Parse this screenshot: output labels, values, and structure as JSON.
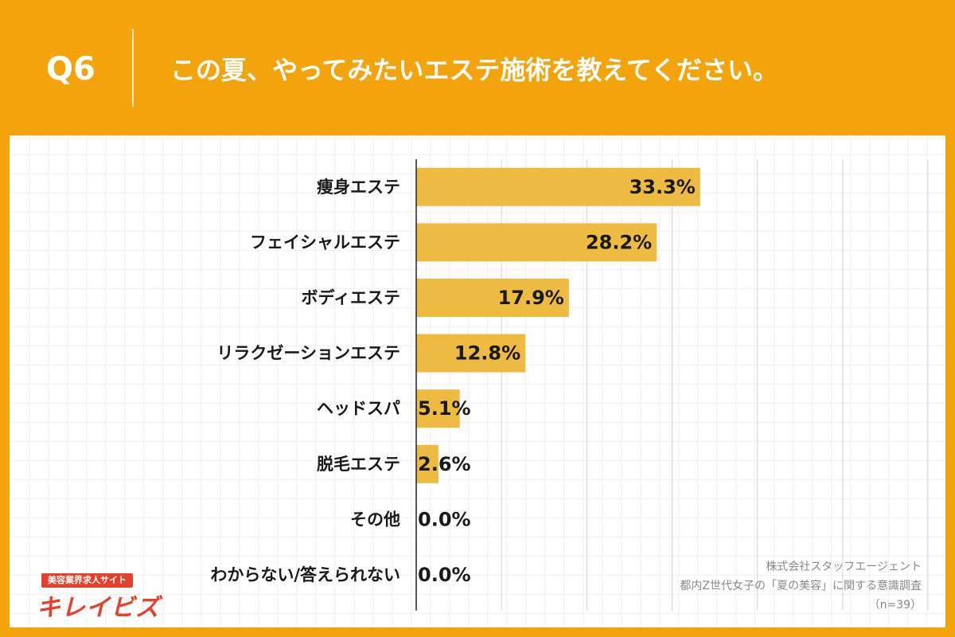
{
  "header": {
    "question_number": "Q6",
    "question_text": "この夏、やってみたいエステ施術を教えてください。"
  },
  "chart_data": {
    "type": "bar",
    "orientation": "horizontal",
    "categories": [
      "痩身エステ",
      "フェイシャルエステ",
      "ボディエステ",
      "リラクゼーションエステ",
      "ヘッドスパ",
      "脱毛エステ",
      "その他",
      "わからない/答えられない"
    ],
    "values": [
      33.3,
      28.2,
      17.9,
      12.8,
      5.1,
      2.6,
      0.0,
      0.0
    ],
    "value_labels": [
      "33.3%",
      "28.2%",
      "17.9%",
      "12.8%",
      "5.1%",
      "2.6%",
      "0.0%",
      "0.0%"
    ],
    "xlim": [
      0,
      60
    ],
    "grid": true,
    "bar_color": "#EDBA42"
  },
  "logo": {
    "badge": "美容業界求人サイト",
    "name": "キレイビズ"
  },
  "source": {
    "company": "株式会社スタッフエージェント",
    "survey": "都内Z世代女子の「夏の美容」に関する意識調査",
    "sample": "（n=39）"
  },
  "colors": {
    "background": "#F3A30B",
    "bar": "#EDBA42",
    "logo": "#E5402B"
  }
}
